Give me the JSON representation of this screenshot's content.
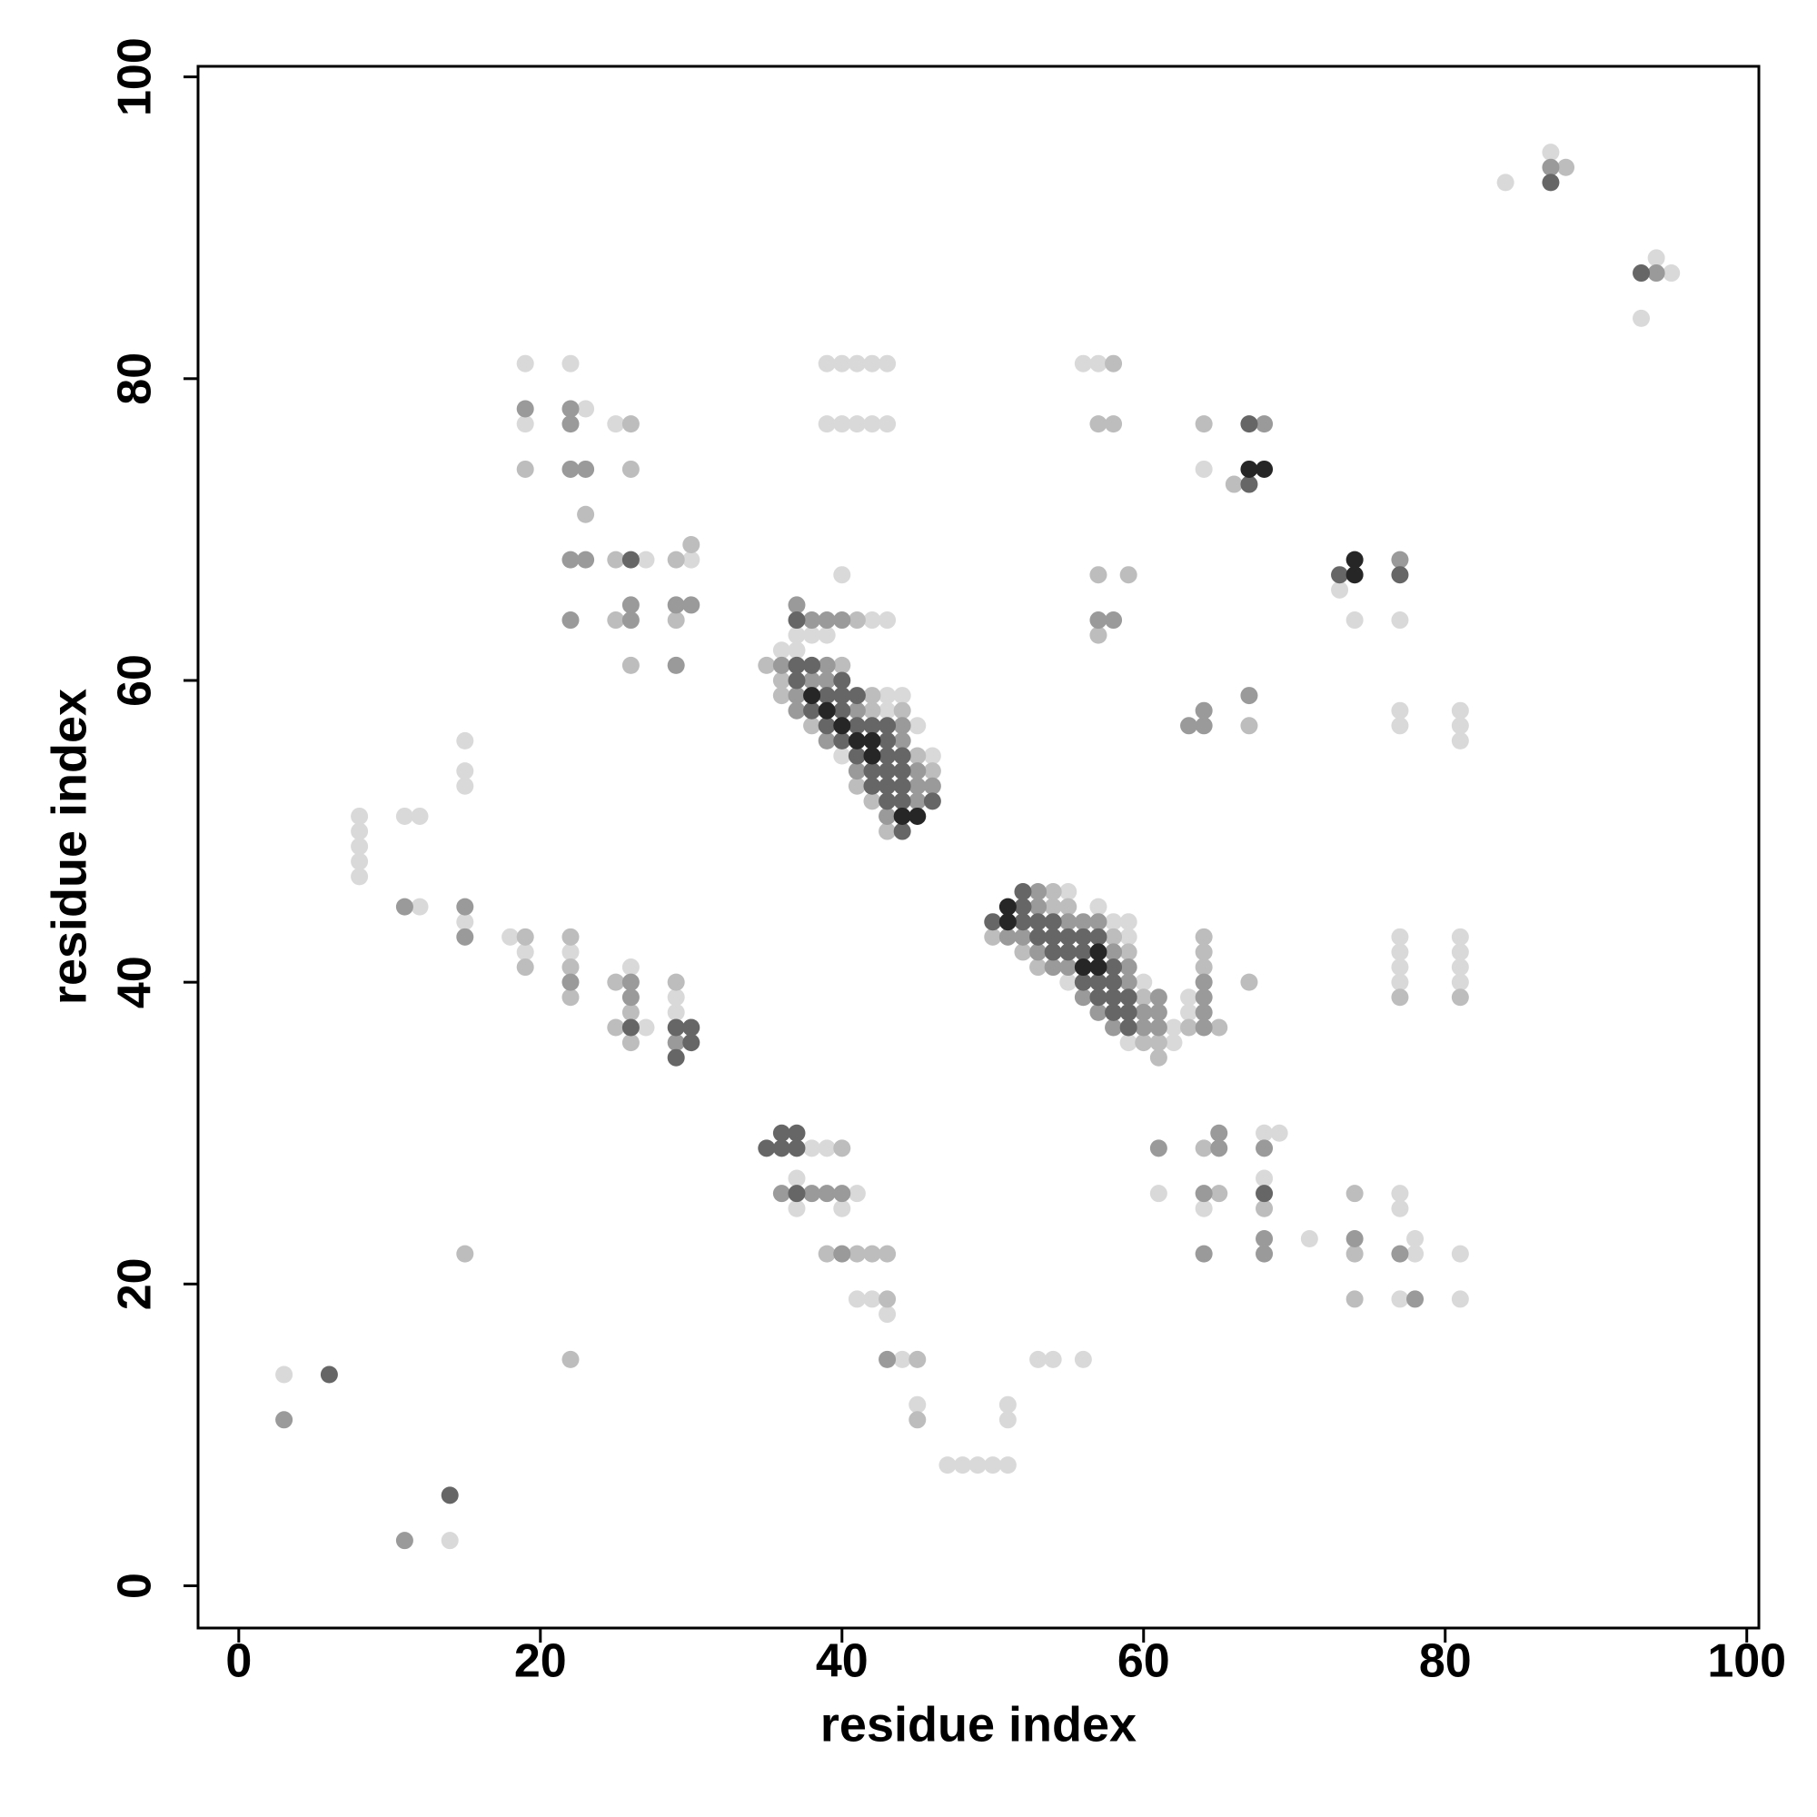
{
  "chart_data": {
    "type": "scatter",
    "xlabel": "residue index",
    "ylabel": "residue index",
    "xlim": [
      -2.7,
      100.8
    ],
    "ylim": [
      -2.8,
      100.7
    ],
    "xticks": [
      0,
      20,
      40,
      60,
      80,
      100
    ],
    "yticks": [
      0,
      20,
      40,
      60,
      80,
      100
    ],
    "grid": false,
    "series": [
      {
        "color": "#d9d9d9",
        "x": [
          3,
          14,
          8,
          8,
          8,
          8,
          8,
          11,
          12,
          12,
          15,
          15,
          15,
          15,
          18,
          19,
          19,
          19,
          22,
          23,
          22,
          25,
          26,
          27,
          27,
          29,
          29,
          30,
          36,
          37,
          37,
          38,
          39,
          40,
          40,
          42,
          43,
          43,
          43,
          44,
          45,
          46,
          39,
          40,
          41,
          42,
          43,
          39,
          40,
          41,
          42,
          43,
          55,
          55,
          57,
          58,
          59,
          59,
          59,
          60,
          62,
          62,
          63,
          63,
          56,
          57,
          64,
          73,
          74,
          77,
          77,
          77,
          81,
          81,
          81,
          77,
          77,
          77,
          77,
          81,
          81,
          81,
          81,
          84,
          87,
          94,
          95,
          93,
          38,
          39,
          37,
          41,
          37,
          40,
          41,
          42,
          43,
          44,
          45,
          47,
          48,
          49,
          50,
          51,
          51,
          51,
          53,
          54,
          56,
          61,
          64,
          68,
          68,
          69,
          71,
          77,
          77,
          78,
          78,
          77,
          81,
          81
        ],
        "values": [
          14,
          3,
          51,
          50,
          49,
          48,
          47,
          51,
          51,
          45,
          56,
          54,
          53,
          44,
          43,
          42,
          81,
          77,
          81,
          78,
          42,
          77,
          41,
          68,
          37,
          39,
          38,
          68,
          62,
          63,
          62,
          63,
          63,
          67,
          55,
          64,
          64,
          59,
          58,
          59,
          57,
          55,
          81,
          81,
          81,
          81,
          81,
          77,
          77,
          77,
          77,
          77,
          46,
          40,
          45,
          44,
          44,
          43,
          36,
          40,
          37,
          36,
          39,
          38,
          81,
          81,
          74,
          66,
          64,
          64,
          58,
          57,
          58,
          57,
          56,
          43,
          42,
          41,
          40,
          43,
          42,
          41,
          40,
          93,
          95,
          88,
          87,
          84,
          29,
          29,
          27,
          26,
          25,
          25,
          19,
          19,
          18,
          15,
          12,
          8,
          8,
          8,
          8,
          8,
          12,
          11,
          15,
          15,
          15,
          26,
          25,
          30,
          27,
          30,
          23,
          26,
          25,
          23,
          22,
          19,
          22,
          19
        ]
      },
      {
        "color": "#bdbdbd",
        "x": [
          15,
          19,
          19,
          19,
          23,
          22,
          22,
          22,
          22,
          25,
          25,
          25,
          25,
          26,
          26,
          26,
          26,
          26,
          29,
          29,
          29,
          30,
          35,
          36,
          36,
          38,
          40,
          41,
          41,
          42,
          42,
          42,
          43,
          44,
          45,
          46,
          50,
          52,
          53,
          54,
          54,
          55,
          58,
          59,
          60,
          60,
          61,
          61,
          63,
          64,
          64,
          64,
          65,
          67,
          58,
          57,
          58,
          57,
          59,
          57,
          64,
          66,
          67,
          77,
          81,
          88,
          40,
          39,
          41,
          42,
          43,
          43,
          45,
          45,
          64,
          65,
          68,
          74,
          74,
          74
        ],
        "values": [
          22,
          43,
          41,
          74,
          71,
          43,
          41,
          39,
          15,
          68,
          64,
          40,
          37,
          77,
          74,
          61,
          38,
          36,
          68,
          64,
          40,
          69,
          61,
          60,
          59,
          57,
          61,
          64,
          53,
          59,
          58,
          52,
          50,
          58,
          55,
          54,
          43,
          42,
          41,
          46,
          45,
          45,
          43,
          42,
          39,
          36,
          36,
          35,
          37,
          43,
          42,
          41,
          37,
          40,
          81,
          77,
          77,
          67,
          67,
          63,
          77,
          73,
          57,
          39,
          39,
          94,
          29,
          22,
          22,
          22,
          22,
          19,
          15,
          11,
          29,
          26,
          25,
          26,
          22,
          19
        ]
      },
      {
        "color": "#9a9a9a",
        "x": [
          3,
          11,
          11,
          15,
          15,
          19,
          22,
          22,
          22,
          23,
          22,
          23,
          22,
          22,
          26,
          26,
          26,
          26,
          29,
          29,
          29,
          30,
          36,
          37,
          37,
          37,
          38,
          38,
          39,
          39,
          39,
          39,
          40,
          41,
          41,
          43,
          44,
          44,
          45,
          45,
          45,
          46,
          51,
          52,
          53,
          53,
          53,
          54,
          55,
          55,
          56,
          56,
          57,
          57,
          58,
          58,
          59,
          59,
          60,
          60,
          61,
          61,
          61,
          64,
          64,
          64,
          64,
          57,
          58,
          68,
          77,
          63,
          64,
          64,
          67,
          87,
          94,
          36,
          38,
          39,
          40,
          40,
          43,
          61,
          65,
          65,
          64,
          64,
          68,
          68,
          68,
          74,
          77,
          78
        ],
        "values": [
          11,
          3,
          45,
          45,
          43,
          78,
          78,
          77,
          74,
          74,
          68,
          68,
          64,
          40,
          65,
          64,
          40,
          39,
          65,
          61,
          36,
          65,
          61,
          65,
          59,
          58,
          64,
          60,
          64,
          61,
          60,
          56,
          64,
          58,
          54,
          51,
          57,
          56,
          54,
          53,
          52,
          53,
          43,
          43,
          46,
          45,
          42,
          41,
          44,
          41,
          44,
          39,
          44,
          38,
          42,
          37,
          41,
          40,
          38,
          37,
          39,
          38,
          37,
          40,
          39,
          38,
          37,
          64,
          64,
          77,
          68,
          57,
          57,
          58,
          59,
          94,
          87,
          26,
          26,
          26,
          26,
          22,
          15,
          29,
          30,
          29,
          26,
          22,
          29,
          23,
          22,
          23,
          22,
          19
        ]
      },
      {
        "color": "#666666",
        "x": [
          6,
          14,
          26,
          26,
          29,
          29,
          30,
          30,
          37,
          37,
          37,
          38,
          38,
          39,
          39,
          40,
          40,
          40,
          40,
          41,
          41,
          41,
          42,
          42,
          42,
          43,
          43,
          43,
          43,
          43,
          43,
          44,
          44,
          44,
          44,
          44,
          46,
          50,
          52,
          52,
          52,
          53,
          53,
          54,
          54,
          54,
          55,
          55,
          56,
          56,
          56,
          57,
          57,
          57,
          58,
          58,
          58,
          58,
          59,
          59,
          59,
          67,
          67,
          73,
          77,
          87,
          93,
          35,
          36,
          36,
          37,
          37,
          37,
          68
        ],
        "values": [
          14,
          6,
          68,
          37,
          37,
          35,
          37,
          36,
          64,
          61,
          60,
          61,
          58,
          59,
          57,
          60,
          59,
          58,
          56,
          59,
          57,
          55,
          57,
          54,
          53,
          57,
          56,
          55,
          54,
          53,
          52,
          55,
          54,
          53,
          52,
          50,
          52,
          44,
          46,
          45,
          44,
          44,
          43,
          44,
          43,
          42,
          43,
          42,
          43,
          42,
          40,
          43,
          40,
          39,
          41,
          40,
          39,
          38,
          39,
          38,
          37,
          73,
          77,
          67,
          67,
          93,
          87,
          29,
          30,
          29,
          30,
          29,
          26,
          26
        ]
      },
      {
        "color": "#262626",
        "x": [
          38,
          39,
          40,
          41,
          42,
          42,
          44,
          45,
          51,
          51,
          56,
          57,
          57,
          67,
          68,
          74,
          74
        ],
        "values": [
          59,
          58,
          57,
          56,
          56,
          55,
          51,
          51,
          45,
          44,
          41,
          42,
          41,
          74,
          74,
          67,
          68
        ]
      }
    ]
  }
}
